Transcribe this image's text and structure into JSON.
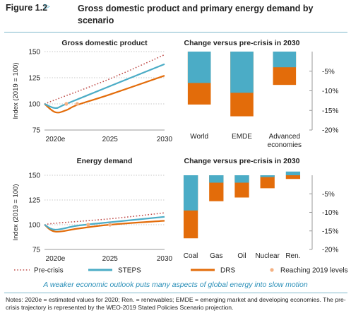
{
  "figure": {
    "label": "Figure 1.2",
    "title": "Gross domestic product and primary energy demand by scenario",
    "caption": "A weaker economic outlook puts many aspects of global energy into slow motion",
    "notes": "Notes: 2020e = estimated values for 2020; Ren. = renewables; EMDE = emerging market and developing economies. The pre-crisis trajectory is represented by the WEO-2019 Stated Policies Scenario projection."
  },
  "colors": {
    "precrisis": "#c0504d",
    "steps": "#4bacc6",
    "drs": "#e36c0a",
    "reaching": "#f4b183"
  },
  "legend": [
    {
      "key": "precrisis",
      "label": "Pre-crisis",
      "style": "dotted-line"
    },
    {
      "key": "steps",
      "label": "STEPS",
      "style": "line"
    },
    {
      "key": "drs",
      "label": "DRS",
      "style": "line"
    },
    {
      "key": "reaching",
      "label": "Reaching 2019 levels",
      "style": "dot"
    }
  ],
  "chart_data": [
    {
      "type": "line",
      "title": "Gross domestic product",
      "ylabel": "Index (2019 = 100)",
      "xlim": [
        2019,
        2030
      ],
      "ylim": [
        75,
        150
      ],
      "yticks": [
        75,
        100,
        125,
        150
      ],
      "xticks": [
        {
          "x": 2020,
          "label": "2020e"
        },
        {
          "x": 2025,
          "label": "2025"
        },
        {
          "x": 2030,
          "label": "2030"
        }
      ],
      "grid": "horizontal dotted",
      "series": [
        {
          "name": "Pre-crisis",
          "key": "precrisis",
          "x": [
            2019,
            2020,
            2025,
            2030
          ],
          "y": [
            100,
            104,
            124,
            147
          ]
        },
        {
          "name": "STEPS",
          "key": "steps",
          "x": [
            2019,
            2020,
            2021,
            2025,
            2030
          ],
          "y": [
            100,
            96,
            100,
            117,
            138
          ]
        },
        {
          "name": "DRS",
          "key": "drs",
          "x": [
            2019,
            2020,
            2021,
            2022,
            2025,
            2030
          ],
          "y": [
            100,
            92,
            94,
            99,
            109,
            127
          ]
        }
      ],
      "reaching_2019": [
        {
          "series": "STEPS",
          "x": 2021,
          "y": 100
        },
        {
          "series": "DRS",
          "x": 2022,
          "y": 100
        }
      ]
    },
    {
      "type": "bar",
      "title": "Change versus pre-crisis in 2030",
      "categories": [
        "World",
        "EMDE",
        "Advanced economies"
      ],
      "ylim": [
        -20,
        0
      ],
      "yticks": [
        -5,
        -10,
        -15,
        -20
      ],
      "series": [
        {
          "name": "STEPS",
          "key": "steps",
          "values": [
            -8,
            -10.5,
            -4
          ]
        },
        {
          "name": "DRS",
          "key": "drs",
          "values": [
            -13.5,
            -16.5,
            -8.5
          ]
        }
      ]
    },
    {
      "type": "line",
      "title": "Energy demand",
      "ylabel": "Index (2019 = 100)",
      "xlim": [
        2019,
        2030
      ],
      "ylim": [
        75,
        150
      ],
      "yticks": [
        75,
        100,
        125,
        150
      ],
      "xticks": [
        {
          "x": 2020,
          "label": "2020e"
        },
        {
          "x": 2025,
          "label": "2025"
        },
        {
          "x": 2030,
          "label": "2030"
        }
      ],
      "grid": "horizontal dotted",
      "series": [
        {
          "name": "Pre-crisis",
          "key": "precrisis",
          "x": [
            2019,
            2020,
            2025,
            2030
          ],
          "y": [
            100,
            101.5,
            106,
            112
          ]
        },
        {
          "name": "STEPS",
          "key": "steps",
          "x": [
            2019,
            2020,
            2022,
            2025,
            2030
          ],
          "y": [
            100,
            95,
            99,
            102.5,
            108
          ]
        },
        {
          "name": "DRS",
          "key": "drs",
          "x": [
            2019,
            2020,
            2022,
            2025,
            2030
          ],
          "y": [
            100,
            93,
            96,
            100,
            104
          ]
        }
      ],
      "reaching_2019": [
        {
          "series": "STEPS",
          "x": 2023,
          "y": 100
        },
        {
          "series": "DRS",
          "x": 2025,
          "y": 100
        }
      ]
    },
    {
      "type": "bar",
      "title": "Change versus pre-crisis in 2030",
      "categories": [
        "Coal",
        "Gas",
        "Oil",
        "Nuclear",
        "Ren."
      ],
      "ylim": [
        -20,
        0
      ],
      "yticks": [
        -5,
        -10,
        -15,
        -20
      ],
      "series": [
        {
          "name": "STEPS",
          "key": "steps",
          "values": [
            -9.5,
            -2,
            -2,
            -0.5,
            1
          ]
        },
        {
          "name": "DRS",
          "key": "drs",
          "values": [
            -17,
            -7,
            -6,
            -3.5,
            -1
          ]
        }
      ]
    }
  ]
}
